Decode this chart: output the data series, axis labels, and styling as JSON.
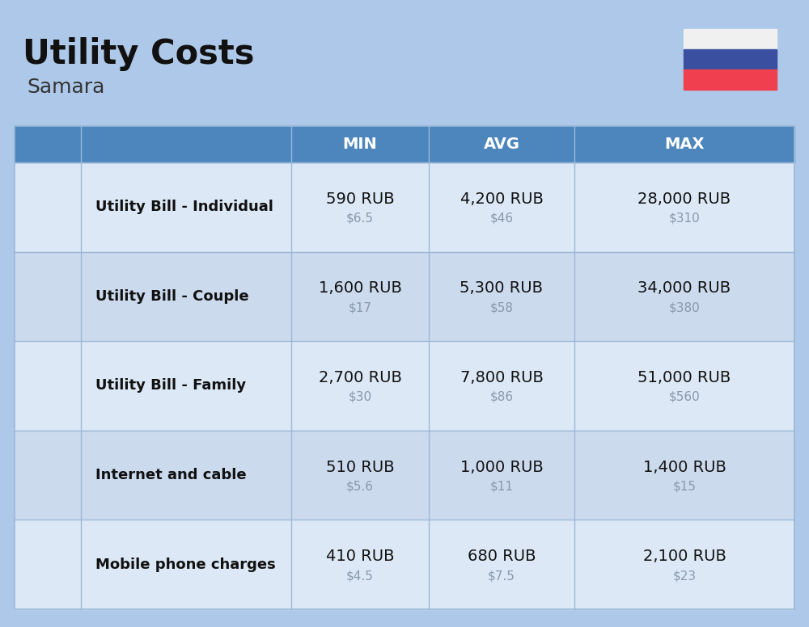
{
  "title": "Utility Costs",
  "subtitle": "Samara",
  "background_color": "#adc8e8",
  "header_color": "#4d86bc",
  "header_text_color": "#ffffff",
  "row_color_odd": "#dce8f5",
  "row_color_even": "#ccdaee",
  "divider_color": "#9ab8d8",
  "columns": [
    "MIN",
    "AVG",
    "MAX"
  ],
  "rows": [
    {
      "label": "Utility Bill - Individual",
      "min_rub": "590 RUB",
      "min_usd": "$6.5",
      "avg_rub": "4,200 RUB",
      "avg_usd": "$46",
      "max_rub": "28,000 RUB",
      "max_usd": "$310"
    },
    {
      "label": "Utility Bill - Couple",
      "min_rub": "1,600 RUB",
      "min_usd": "$17",
      "avg_rub": "5,300 RUB",
      "avg_usd": "$58",
      "max_rub": "34,000 RUB",
      "max_usd": "$380"
    },
    {
      "label": "Utility Bill - Family",
      "min_rub": "2,700 RUB",
      "min_usd": "$30",
      "avg_rub": "7,800 RUB",
      "avg_usd": "$86",
      "max_rub": "51,000 RUB",
      "max_usd": "$560"
    },
    {
      "label": "Internet and cable",
      "min_rub": "510 RUB",
      "min_usd": "$5.6",
      "avg_rub": "1,000 RUB",
      "avg_usd": "$11",
      "max_rub": "1,400 RUB",
      "max_usd": "$15"
    },
    {
      "label": "Mobile phone charges",
      "min_rub": "410 RUB",
      "min_usd": "$4.5",
      "avg_rub": "680 RUB",
      "avg_usd": "$7.5",
      "max_rub": "2,100 RUB",
      "max_usd": "$23"
    }
  ],
  "russia_flag": {
    "white": "#f0f0f0",
    "blue": "#3a4fa0",
    "red": "#f04050"
  },
  "title_fontsize": 30,
  "subtitle_fontsize": 18,
  "header_fontsize": 14,
  "label_fontsize": 13,
  "value_fontsize": 14,
  "usd_fontsize": 11,
  "usd_color": "#8899aa"
}
